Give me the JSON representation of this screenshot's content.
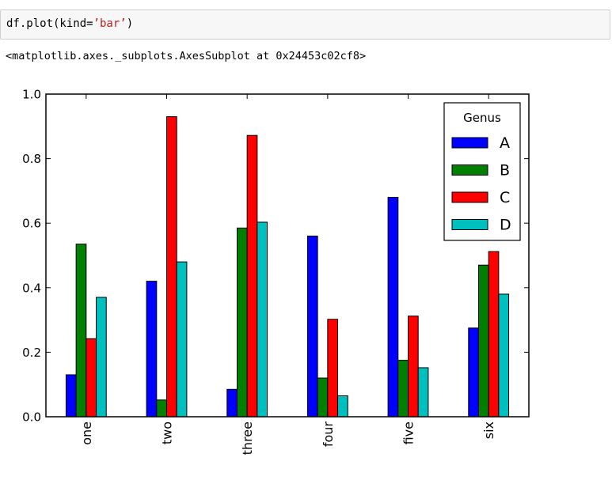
{
  "notebook": {
    "input_code_prefix": "df.plot(kind=",
    "input_code_string": "’bar’",
    "input_code_suffix": ")",
    "output_repr": "<matplotlib.axes._subplots.AxesSubplot at 0x24453c02cf8>"
  },
  "chart_data": {
    "type": "bar",
    "categories": [
      "one",
      "two",
      "three",
      "four",
      "five",
      "six"
    ],
    "series": [
      {
        "name": "A",
        "color": "#0000ff",
        "values": [
          0.13,
          0.42,
          0.085,
          0.56,
          0.68,
          0.275
        ]
      },
      {
        "name": "B",
        "color": "#007f00",
        "values": [
          0.535,
          0.052,
          0.585,
          0.12,
          0.175,
          0.47
        ]
      },
      {
        "name": "C",
        "color": "#ff0000",
        "values": [
          0.242,
          0.93,
          0.872,
          0.302,
          0.312,
          0.512
        ]
      },
      {
        "name": "D",
        "color": "#00bfbf",
        "values": [
          0.37,
          0.48,
          0.603,
          0.065,
          0.152,
          0.38
        ]
      }
    ],
    "ylim": [
      0.0,
      1.0
    ],
    "yticks": [
      "0.0",
      "0.2",
      "0.4",
      "0.6",
      "0.8",
      "1.0"
    ],
    "legend_title": "Genus",
    "legend_position": "upper-right",
    "grid": false
  }
}
